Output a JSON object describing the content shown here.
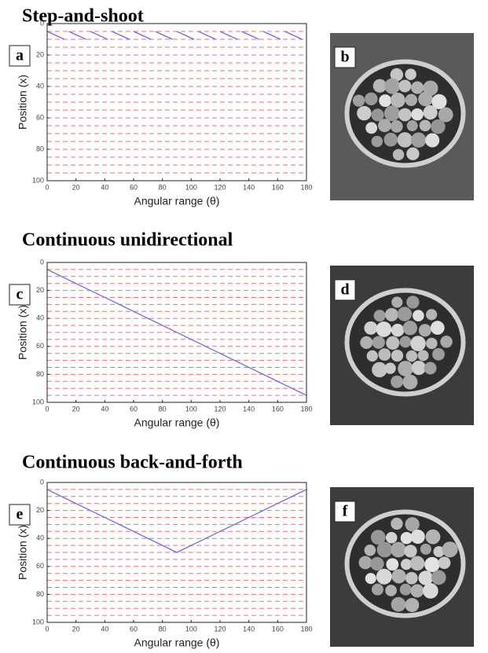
{
  "chart_data": [
    {
      "type": "line",
      "title": "Step-and-shoot",
      "panel": "a",
      "xlabel": "Angular range (θ)",
      "ylabel": "Position (x)",
      "xlim": [
        0,
        180
      ],
      "ylim": [
        0,
        100
      ],
      "y_reversed": true,
      "xticks": [
        0,
        20,
        40,
        60,
        80,
        100,
        120,
        140,
        160,
        180
      ],
      "yticks": [
        0,
        20,
        40,
        60,
        80,
        100
      ],
      "hlines": {
        "color": "#f07070",
        "dashed": true,
        "values": [
          5,
          10,
          15,
          20,
          25,
          30,
          35,
          40,
          45,
          50,
          55,
          60,
          65,
          70,
          75,
          80,
          85,
          90,
          95
        ]
      },
      "series": [
        {
          "color": "#6a6af0",
          "x": [
            0,
            12,
            null,
            15,
            27,
            null,
            30,
            42,
            null,
            45,
            57,
            null,
            60,
            72,
            null,
            75,
            87,
            null,
            90,
            102,
            null,
            105,
            117,
            null,
            120,
            132,
            null,
            135,
            147,
            null,
            150,
            162,
            null,
            165,
            177
          ],
          "values": [
            5,
            10,
            null,
            5,
            10,
            null,
            5,
            10,
            null,
            5,
            10,
            null,
            5,
            10,
            null,
            5,
            10,
            null,
            5,
            10,
            null,
            5,
            10,
            null,
            5,
            10,
            null,
            5,
            10,
            null,
            5,
            10,
            null,
            5,
            10
          ]
        }
      ]
    },
    {
      "type": "line",
      "title": "Continuous unidirectional",
      "panel": "c",
      "xlabel": "Angular range (θ)",
      "ylabel": "Position (x)",
      "xlim": [
        0,
        180
      ],
      "ylim": [
        0,
        100
      ],
      "y_reversed": true,
      "xticks": [
        0,
        20,
        40,
        60,
        80,
        100,
        120,
        140,
        160,
        180
      ],
      "yticks": [
        0,
        20,
        40,
        60,
        80,
        100
      ],
      "hlines": {
        "color": "#f07070",
        "dashed": true,
        "values": [
          5,
          10,
          15,
          20,
          25,
          30,
          35,
          40,
          45,
          50,
          55,
          60,
          65,
          70,
          75,
          80,
          85,
          90,
          95
        ]
      },
      "series": [
        {
          "color": "#6a6af0",
          "x": [
            0,
            180
          ],
          "values": [
            5,
            95
          ]
        }
      ]
    },
    {
      "type": "line",
      "title": "Continuous back-and-forth",
      "panel": "e",
      "xlabel": "Angular range (θ)",
      "ylabel": "Position (x)",
      "xlim": [
        0,
        180
      ],
      "ylim": [
        0,
        100
      ],
      "y_reversed": true,
      "xticks": [
        0,
        20,
        40,
        60,
        80,
        100,
        120,
        140,
        160,
        180
      ],
      "yticks": [
        0,
        20,
        40,
        60,
        80,
        100
      ],
      "hlines": {
        "color": "#f07070",
        "dashed": true,
        "values": [
          5,
          10,
          15,
          20,
          25,
          30,
          35,
          40,
          45,
          50,
          55,
          60,
          65,
          70,
          75,
          80,
          85,
          90,
          95
        ]
      },
      "series": [
        {
          "color": "#6a6af0",
          "x": [
            0,
            90,
            180
          ],
          "values": [
            5,
            50,
            5
          ]
        }
      ]
    }
  ],
  "images": [
    {
      "panel": "b"
    },
    {
      "panel": "d"
    },
    {
      "panel": "f"
    }
  ]
}
